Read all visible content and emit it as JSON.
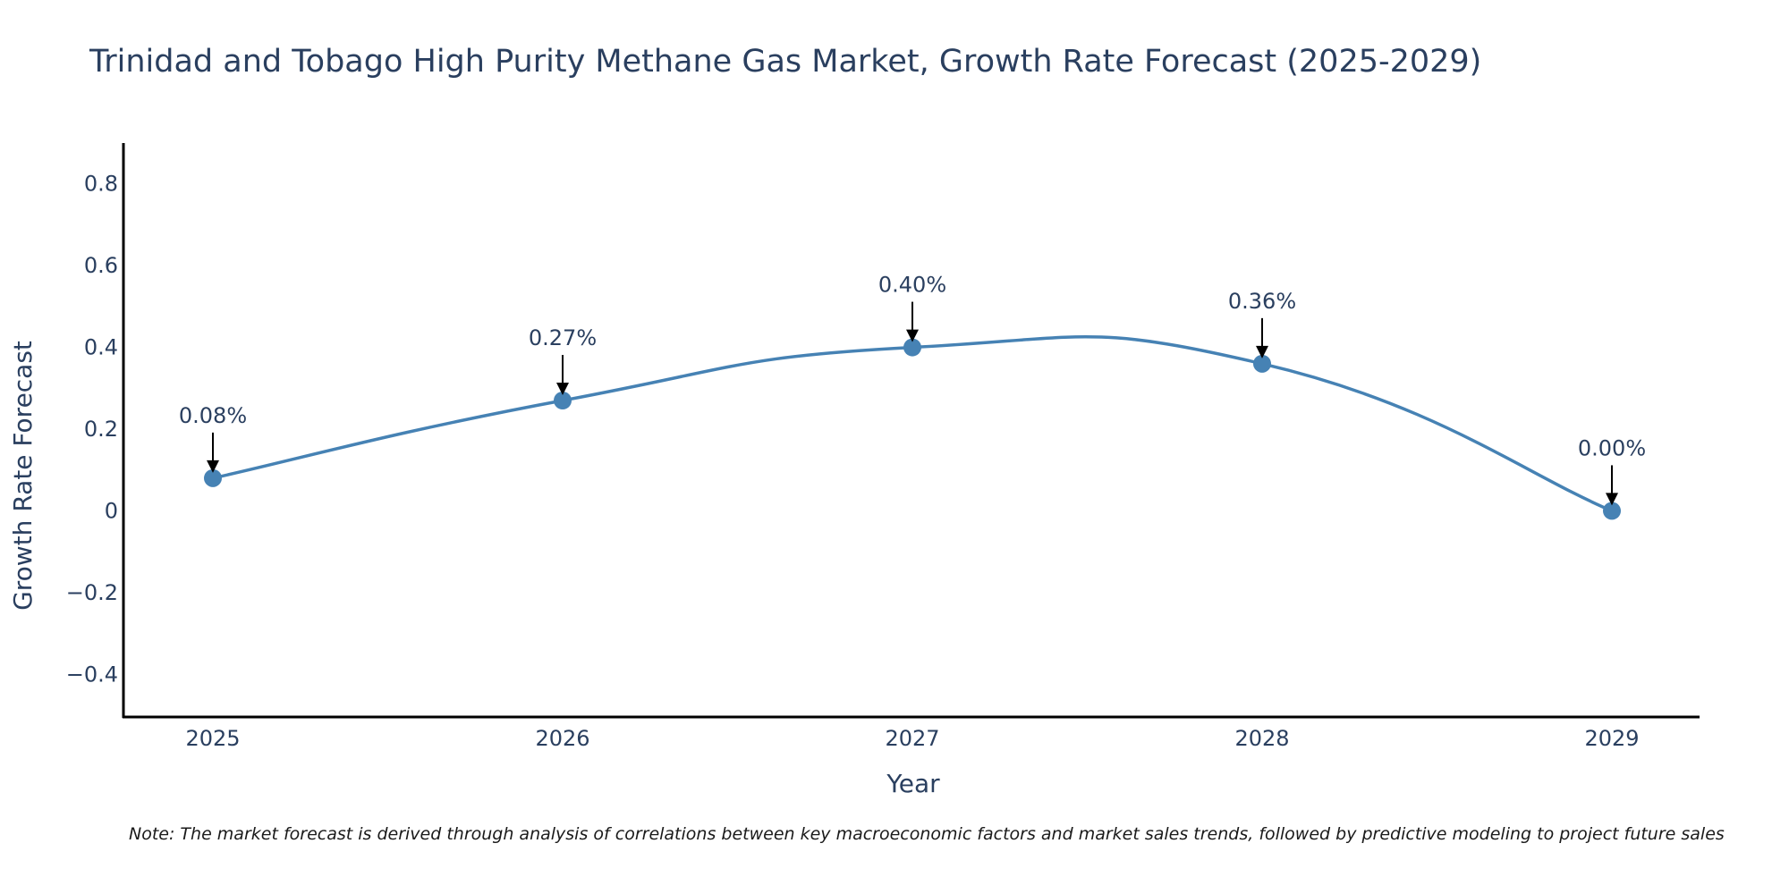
{
  "chart_data": {
    "type": "line",
    "title": "Trinidad and Tobago High Purity Methane Gas Market, Growth Rate Forecast (2025-2029)",
    "xlabel": "Year",
    "ylabel": "Growth Rate Forecast",
    "categories": [
      "2025",
      "2026",
      "2027",
      "2028",
      "2029"
    ],
    "series": [
      {
        "name": "Growth Rate Forecast",
        "values": [
          0.08,
          0.27,
          0.4,
          0.36,
          0.0
        ]
      }
    ],
    "data_labels": [
      "0.08%",
      "0.27%",
      "0.40%",
      "0.36%",
      "0.00%"
    ],
    "ylim": [
      -0.5,
      0.9
    ],
    "yticks": [
      -0.4,
      -0.2,
      0,
      0.2,
      0.4,
      0.6,
      0.8
    ],
    "ytick_labels": [
      "−0.4",
      "−0.2",
      "0",
      "0.2",
      "0.4",
      "0.6",
      "0.8"
    ],
    "grid": false,
    "note": "Note: The market forecast is derived through analysis of correlations between key macroeconomic factors and market sales trends, followed by predictive modeling to project future sales",
    "colors": {
      "line": "#4682b4",
      "marker": "#4682b4",
      "arrow": "#000000",
      "text": "#2a3f5f"
    }
  }
}
